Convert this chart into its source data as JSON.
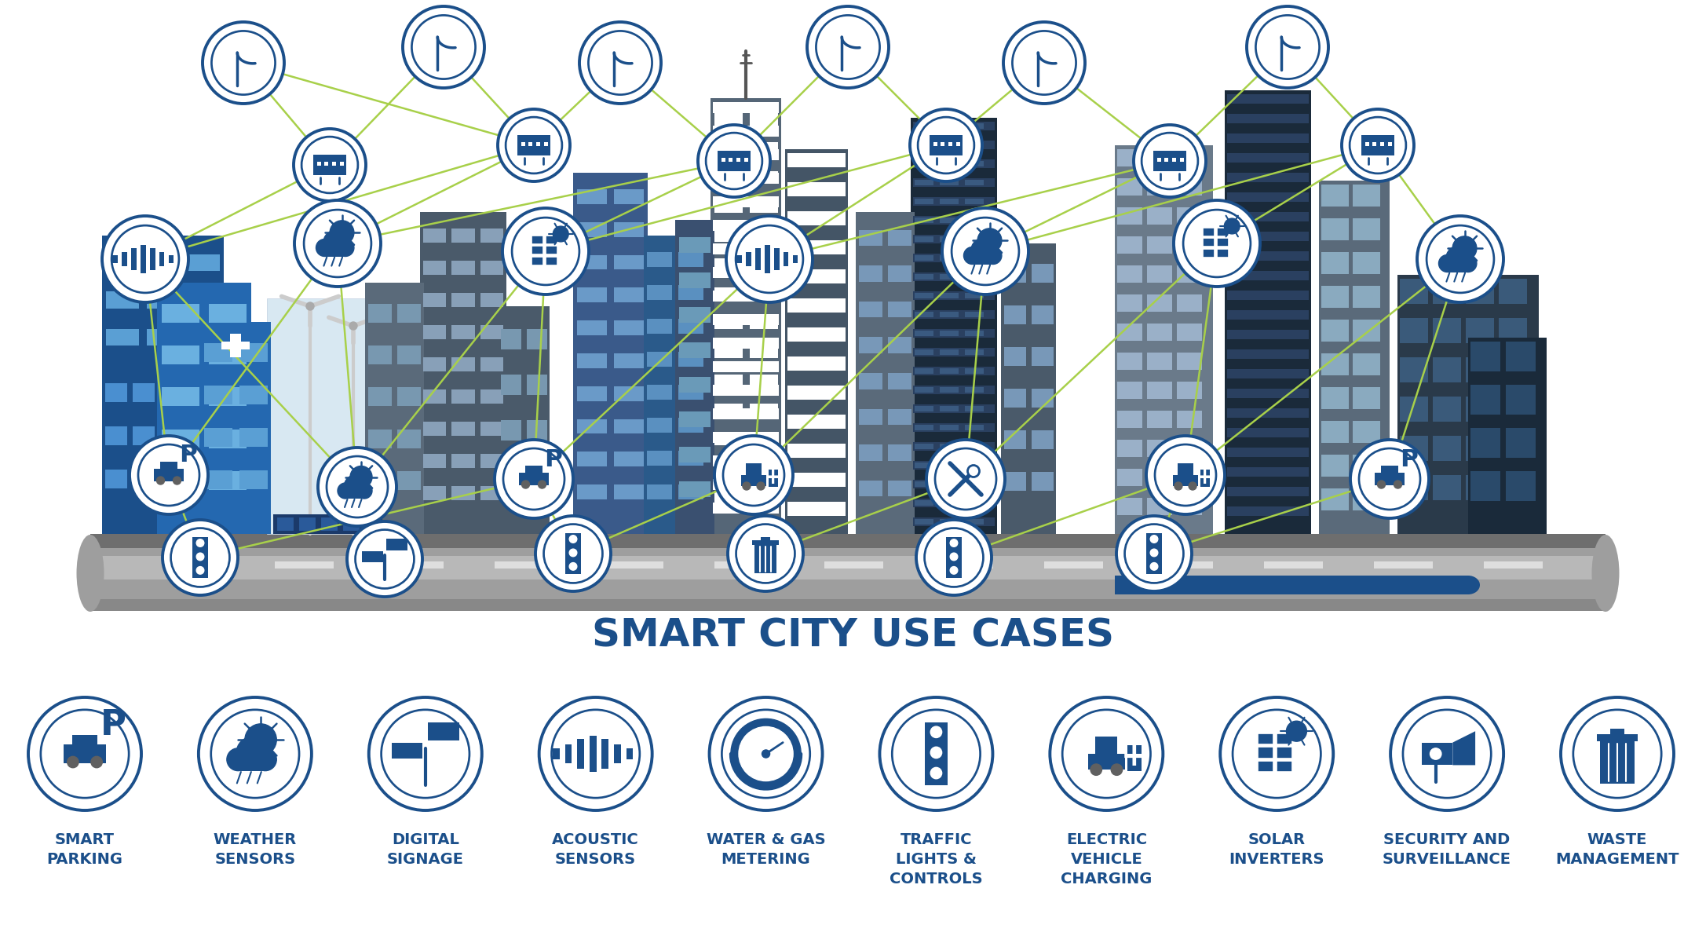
{
  "title": "SMART CITY USE CASES",
  "title_color": "#1b4f8a",
  "title_fontsize": 36,
  "bg_color": "#ffffff",
  "icon_color": "#1b4f8a",
  "icon_lw": 2.8,
  "green_line_color": "#a8d04a",
  "green_line_lw": 1.8,
  "road_top_color": "#8c8c8c",
  "road_mid_color": "#b0b0b0",
  "road_bot_color": "#c8c8c8",
  "ground_green": "#8dc63f",
  "ground_blue": "#1b4f8a",
  "building_blue1": "#1b4f8a",
  "building_blue2": "#2a6dbf",
  "building_blue3": "#4a90d9",
  "building_gray1": "#4a5a6a",
  "building_gray2": "#6a7a8a",
  "building_gray3": "#8a9aaa",
  "building_dark1": "#1a2a3a",
  "building_dark2": "#2a3a4a",
  "building_dark3": "#3a4a5a",
  "win_blue_light": "#b8d8f0",
  "win_blue_mid": "#6aa8d8",
  "win_white": "#e8f4fc",
  "use_cases": [
    {
      "label": "SMART\nPARKING",
      "icon": "parking"
    },
    {
      "label": "WEATHER\nSENSORS",
      "icon": "weather"
    },
    {
      "label": "DIGITAL\nSIGNAGE",
      "icon": "signage"
    },
    {
      "label": "ACOUSTIC\nSENSORS",
      "icon": "acoustic"
    },
    {
      "label": "WATER & GAS\nMETERING",
      "icon": "water"
    },
    {
      "label": "TRAFFIC\nLIGHTS &\nCONTROLS",
      "icon": "traffic"
    },
    {
      "label": "ELECTRIC\nVEHICLE\nCHARGING",
      "icon": "electric"
    },
    {
      "label": "SOLAR\nINVERTERS",
      "icon": "solar"
    },
    {
      "label": "SECURITY AND\nSURVEILLANCE",
      "icon": "security"
    },
    {
      "label": "WASTE\nMANAGEMENT",
      "icon": "waste"
    }
  ],
  "label_color": "#1b4f8a",
  "label_fontsize": 14
}
